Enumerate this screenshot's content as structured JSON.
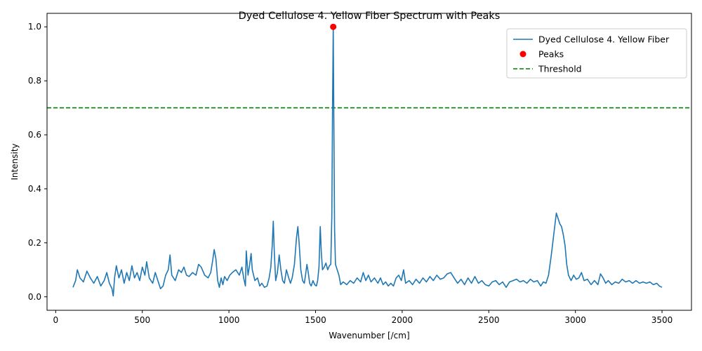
{
  "chart_data": {
    "type": "line",
    "title": "Dyed Cellulose 4. Yellow Fiber Spectrum with Peaks",
    "xlabel": "Wavenumber [/cm]",
    "ylabel": "Intensity",
    "xlim": [
      -50,
      3670
    ],
    "ylim": [
      -0.05,
      1.05
    ],
    "xticks": [
      0,
      500,
      1000,
      1500,
      2000,
      2500,
      3000,
      3500
    ],
    "yticks": [
      0.0,
      0.2,
      0.4,
      0.6,
      0.8,
      1.0
    ],
    "xtick_labels": [
      "0",
      "500",
      "1000",
      "1500",
      "2000",
      "2500",
      "3000",
      "3500"
    ],
    "ytick_labels": [
      "0.0",
      "0.2",
      "0.4",
      "0.6",
      "0.8",
      "1.0"
    ],
    "grid": false,
    "legend_position": "top-right",
    "series": [
      {
        "name": "Dyed Cellulose 4. Yellow Fiber",
        "kind": "line",
        "color": "#1f77b4",
        "points": [
          [
            100,
            0.035
          ],
          [
            115,
            0.06
          ],
          [
            125,
            0.1
          ],
          [
            140,
            0.07
          ],
          [
            160,
            0.055
          ],
          [
            180,
            0.095
          ],
          [
            200,
            0.07
          ],
          [
            220,
            0.05
          ],
          [
            240,
            0.075
          ],
          [
            260,
            0.04
          ],
          [
            280,
            0.06
          ],
          [
            295,
            0.09
          ],
          [
            310,
            0.05
          ],
          [
            325,
            0.03
          ],
          [
            332,
            0.003
          ],
          [
            340,
            0.07
          ],
          [
            350,
            0.115
          ],
          [
            365,
            0.07
          ],
          [
            380,
            0.1
          ],
          [
            395,
            0.05
          ],
          [
            410,
            0.09
          ],
          [
            425,
            0.06
          ],
          [
            440,
            0.115
          ],
          [
            455,
            0.07
          ],
          [
            470,
            0.09
          ],
          [
            485,
            0.06
          ],
          [
            500,
            0.11
          ],
          [
            515,
            0.08
          ],
          [
            525,
            0.13
          ],
          [
            540,
            0.07
          ],
          [
            560,
            0.05
          ],
          [
            575,
            0.09
          ],
          [
            590,
            0.06
          ],
          [
            605,
            0.03
          ],
          [
            620,
            0.04
          ],
          [
            635,
            0.08
          ],
          [
            650,
            0.1
          ],
          [
            660,
            0.155
          ],
          [
            670,
            0.08
          ],
          [
            690,
            0.06
          ],
          [
            710,
            0.1
          ],
          [
            725,
            0.09
          ],
          [
            740,
            0.11
          ],
          [
            755,
            0.08
          ],
          [
            770,
            0.075
          ],
          [
            790,
            0.09
          ],
          [
            810,
            0.08
          ],
          [
            825,
            0.12
          ],
          [
            840,
            0.11
          ],
          [
            860,
            0.08
          ],
          [
            880,
            0.07
          ],
          [
            895,
            0.09
          ],
          [
            905,
            0.13
          ],
          [
            915,
            0.175
          ],
          [
            925,
            0.14
          ],
          [
            935,
            0.06
          ],
          [
            945,
            0.035
          ],
          [
            955,
            0.07
          ],
          [
            965,
            0.045
          ],
          [
            975,
            0.075
          ],
          [
            990,
            0.06
          ],
          [
            1005,
            0.08
          ],
          [
            1020,
            0.09
          ],
          [
            1040,
            0.1
          ],
          [
            1060,
            0.08
          ],
          [
            1075,
            0.11
          ],
          [
            1085,
            0.07
          ],
          [
            1095,
            0.04
          ],
          [
            1100,
            0.17
          ],
          [
            1110,
            0.08
          ],
          [
            1120,
            0.12
          ],
          [
            1128,
            0.16
          ],
          [
            1135,
            0.1
          ],
          [
            1150,
            0.06
          ],
          [
            1165,
            0.07
          ],
          [
            1178,
            0.04
          ],
          [
            1190,
            0.05
          ],
          [
            1205,
            0.035
          ],
          [
            1220,
            0.04
          ],
          [
            1232,
            0.07
          ],
          [
            1242,
            0.11
          ],
          [
            1250,
            0.19
          ],
          [
            1256,
            0.28
          ],
          [
            1262,
            0.16
          ],
          [
            1270,
            0.06
          ],
          [
            1280,
            0.09
          ],
          [
            1290,
            0.155
          ],
          [
            1300,
            0.1
          ],
          [
            1310,
            0.06
          ],
          [
            1320,
            0.05
          ],
          [
            1332,
            0.1
          ],
          [
            1345,
            0.07
          ],
          [
            1355,
            0.05
          ],
          [
            1365,
            0.07
          ],
          [
            1378,
            0.12
          ],
          [
            1390,
            0.22
          ],
          [
            1398,
            0.26
          ],
          [
            1405,
            0.2
          ],
          [
            1415,
            0.1
          ],
          [
            1425,
            0.06
          ],
          [
            1435,
            0.05
          ],
          [
            1442,
            0.08
          ],
          [
            1450,
            0.12
          ],
          [
            1458,
            0.09
          ],
          [
            1466,
            0.05
          ],
          [
            1475,
            0.04
          ],
          [
            1485,
            0.06
          ],
          [
            1495,
            0.045
          ],
          [
            1505,
            0.04
          ],
          [
            1512,
            0.06
          ],
          [
            1520,
            0.11
          ],
          [
            1527,
            0.26
          ],
          [
            1533,
            0.17
          ],
          [
            1540,
            0.1
          ],
          [
            1550,
            0.11
          ],
          [
            1560,
            0.125
          ],
          [
            1570,
            0.1
          ],
          [
            1580,
            0.115
          ],
          [
            1588,
            0.12
          ],
          [
            1594,
            0.3
          ],
          [
            1598,
            0.7
          ],
          [
            1602,
            1.0
          ],
          [
            1606,
            0.6
          ],
          [
            1610,
            0.25
          ],
          [
            1615,
            0.12
          ],
          [
            1625,
            0.1
          ],
          [
            1635,
            0.08
          ],
          [
            1645,
            0.045
          ],
          [
            1660,
            0.055
          ],
          [
            1680,
            0.045
          ],
          [
            1700,
            0.06
          ],
          [
            1720,
            0.05
          ],
          [
            1740,
            0.07
          ],
          [
            1760,
            0.055
          ],
          [
            1775,
            0.09
          ],
          [
            1790,
            0.06
          ],
          [
            1805,
            0.08
          ],
          [
            1820,
            0.055
          ],
          [
            1840,
            0.07
          ],
          [
            1860,
            0.05
          ],
          [
            1875,
            0.07
          ],
          [
            1890,
            0.045
          ],
          [
            1905,
            0.055
          ],
          [
            1920,
            0.04
          ],
          [
            1935,
            0.05
          ],
          [
            1950,
            0.04
          ],
          [
            1965,
            0.07
          ],
          [
            1980,
            0.08
          ],
          [
            1995,
            0.06
          ],
          [
            2008,
            0.1
          ],
          [
            2020,
            0.05
          ],
          [
            2040,
            0.06
          ],
          [
            2060,
            0.045
          ],
          [
            2080,
            0.065
          ],
          [
            2100,
            0.05
          ],
          [
            2120,
            0.07
          ],
          [
            2140,
            0.055
          ],
          [
            2160,
            0.075
          ],
          [
            2180,
            0.06
          ],
          [
            2200,
            0.08
          ],
          [
            2220,
            0.065
          ],
          [
            2240,
            0.07
          ],
          [
            2260,
            0.085
          ],
          [
            2280,
            0.09
          ],
          [
            2300,
            0.07
          ],
          [
            2320,
            0.05
          ],
          [
            2340,
            0.065
          ],
          [
            2360,
            0.045
          ],
          [
            2380,
            0.07
          ],
          [
            2400,
            0.05
          ],
          [
            2420,
            0.075
          ],
          [
            2440,
            0.05
          ],
          [
            2460,
            0.06
          ],
          [
            2480,
            0.045
          ],
          [
            2500,
            0.04
          ],
          [
            2520,
            0.055
          ],
          [
            2540,
            0.06
          ],
          [
            2560,
            0.045
          ],
          [
            2580,
            0.055
          ],
          [
            2600,
            0.035
          ],
          [
            2620,
            0.055
          ],
          [
            2640,
            0.06
          ],
          [
            2660,
            0.065
          ],
          [
            2680,
            0.055
          ],
          [
            2700,
            0.06
          ],
          [
            2720,
            0.05
          ],
          [
            2740,
            0.065
          ],
          [
            2760,
            0.055
          ],
          [
            2780,
            0.06
          ],
          [
            2800,
            0.04
          ],
          [
            2815,
            0.055
          ],
          [
            2830,
            0.05
          ],
          [
            2845,
            0.08
          ],
          [
            2860,
            0.15
          ],
          [
            2875,
            0.23
          ],
          [
            2890,
            0.31
          ],
          [
            2900,
            0.29
          ],
          [
            2910,
            0.27
          ],
          [
            2920,
            0.26
          ],
          [
            2930,
            0.23
          ],
          [
            2940,
            0.19
          ],
          [
            2950,
            0.12
          ],
          [
            2960,
            0.08
          ],
          [
            2975,
            0.06
          ],
          [
            2990,
            0.08
          ],
          [
            3005,
            0.065
          ],
          [
            3020,
            0.07
          ],
          [
            3035,
            0.09
          ],
          [
            3050,
            0.06
          ],
          [
            3070,
            0.065
          ],
          [
            3090,
            0.045
          ],
          [
            3110,
            0.06
          ],
          [
            3130,
            0.045
          ],
          [
            3145,
            0.085
          ],
          [
            3160,
            0.07
          ],
          [
            3175,
            0.05
          ],
          [
            3190,
            0.06
          ],
          [
            3210,
            0.045
          ],
          [
            3230,
            0.055
          ],
          [
            3250,
            0.05
          ],
          [
            3270,
            0.065
          ],
          [
            3290,
            0.055
          ],
          [
            3310,
            0.06
          ],
          [
            3330,
            0.05
          ],
          [
            3350,
            0.06
          ],
          [
            3370,
            0.05
          ],
          [
            3390,
            0.055
          ],
          [
            3410,
            0.05
          ],
          [
            3430,
            0.055
          ],
          [
            3450,
            0.045
          ],
          [
            3470,
            0.05
          ],
          [
            3485,
            0.04
          ],
          [
            3500,
            0.035
          ]
        ]
      },
      {
        "name": "Peaks",
        "kind": "scatter",
        "color": "#ff0000",
        "points": [
          [
            1602,
            1.0
          ]
        ]
      },
      {
        "name": "Threshold",
        "kind": "hline",
        "color": "#008000",
        "y": 0.7
      }
    ]
  }
}
